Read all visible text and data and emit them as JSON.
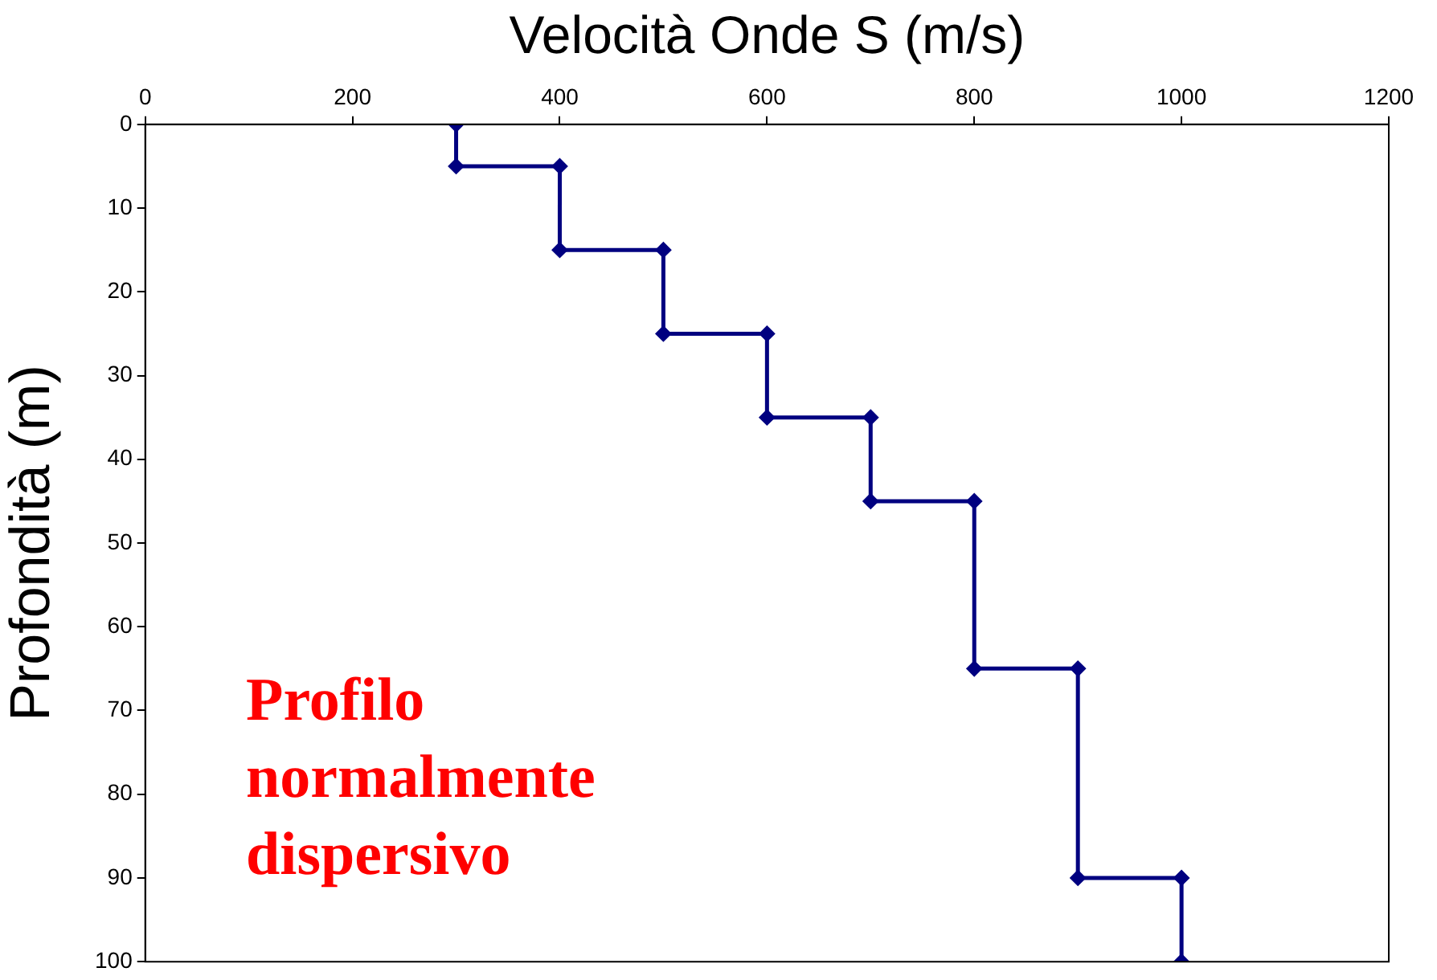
{
  "chart_data": {
    "type": "line",
    "xlabel": "Velocità Onde S (m/s)",
    "ylabel": "Profondità (m)",
    "x": [
      300,
      300,
      400,
      400,
      500,
      500,
      600,
      600,
      700,
      700,
      800,
      800,
      900,
      900,
      1000,
      1000
    ],
    "values": [
      0,
      5,
      5,
      15,
      15,
      25,
      25,
      35,
      35,
      45,
      45,
      65,
      65,
      90,
      90,
      100
    ],
    "color": "#000080",
    "marker": "diamond",
    "line_style": "solid",
    "xlim": [
      0,
      1200
    ],
    "xticks": [
      0,
      200,
      400,
      600,
      800,
      1000,
      1200
    ],
    "ylim": [
      100,
      0
    ],
    "yticks": [
      0,
      10,
      20,
      30,
      40,
      50,
      60,
      70,
      80,
      90,
      100
    ],
    "grid": false,
    "legend": false,
    "annotations": [
      "Profilo normalmente dispersivo"
    ]
  }
}
